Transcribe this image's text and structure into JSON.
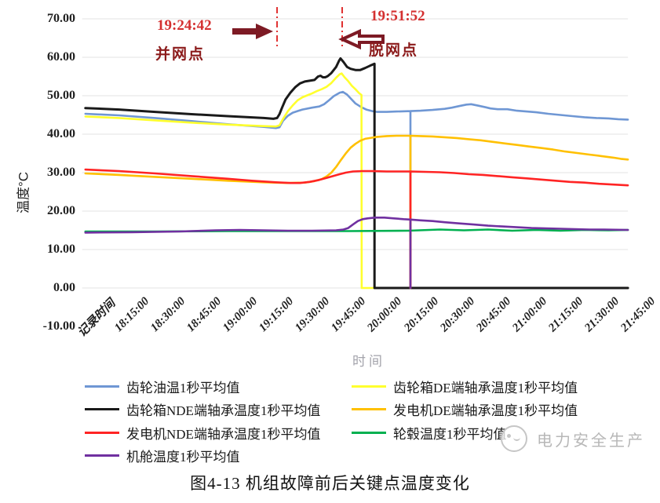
{
  "page": {
    "caption": "图4-13 机组故障前后关键点温度变化"
  },
  "watermark": {
    "text": "电力安全生产",
    "color": "#b7b7b7",
    "logo": "round-badge-icon"
  },
  "chart_data": {
    "type": "line",
    "title": "",
    "xlabel": "时间",
    "ylabel": "温度℃",
    "ylabel_display": "温度°C",
    "ylim": [
      -10,
      70
    ],
    "ytick_step": 10,
    "grid": "horizontal",
    "legend_position": "bottom",
    "ytick_labels": [
      "70.00",
      "60.00",
      "50.00",
      "40.00",
      "30.00",
      "20.00",
      "10.00",
      "0.00",
      "-10.00"
    ],
    "categories": [
      {
        "label": "记录时间",
        "t": 0
      },
      {
        "label": "18:15:00",
        "t": 15
      },
      {
        "label": "18:30:00",
        "t": 30
      },
      {
        "label": "18:45:00",
        "t": 45
      },
      {
        "label": "19:00:00",
        "t": 60
      },
      {
        "label": "19:15:00",
        "t": 75
      },
      {
        "label": "19:30:00",
        "t": 90
      },
      {
        "label": "19:45:00",
        "t": 105
      },
      {
        "label": "20:00:00",
        "t": 120
      },
      {
        "label": "20:15:00",
        "t": 135
      },
      {
        "label": "20:30:00",
        "t": 150
      },
      {
        "label": "20:45:00",
        "t": 165
      },
      {
        "label": "21:00:00",
        "t": 180
      },
      {
        "label": "21:15:00",
        "t": 195
      },
      {
        "label": "21:30:00",
        "t": 210
      },
      {
        "label": "21:45:00",
        "t": 225
      }
    ],
    "t_max": 226,
    "series": [
      {
        "name": "齿轮油温1秒平均值",
        "color": "#6f97d4",
        "width": 2.6,
        "points": [
          [
            1,
            45.3
          ],
          [
            15,
            44.9
          ],
          [
            30,
            44.2
          ],
          [
            45,
            43.4
          ],
          [
            60,
            42.6
          ],
          [
            75,
            41.9
          ],
          [
            80,
            41.6
          ],
          [
            81.5,
            41.8
          ],
          [
            83,
            43.5
          ],
          [
            85,
            44.8
          ],
          [
            87,
            45.6
          ],
          [
            91,
            46.4
          ],
          [
            95,
            46.9
          ],
          [
            98,
            47.2
          ],
          [
            100,
            47.8
          ],
          [
            102,
            48.8
          ],
          [
            104,
            49.9
          ],
          [
            106.5,
            50.8
          ],
          [
            107.8,
            51
          ],
          [
            109.5,
            50.3
          ],
          [
            111,
            49.3
          ],
          [
            113,
            48
          ],
          [
            115.5,
            47
          ],
          [
            117.5,
            46.4
          ],
          [
            120,
            46
          ],
          [
            122,
            45.8
          ],
          [
            126,
            45.8
          ],
          [
            130,
            45.9
          ],
          [
            135.8,
            46
          ],
          [
            135.8,
            0
          ],
          [
            135.8,
            46
          ],
          [
            140,
            46.1
          ],
          [
            145,
            46.3
          ],
          [
            150,
            46.6
          ],
          [
            153,
            46.9
          ],
          [
            156,
            47.3
          ],
          [
            159,
            47.7
          ],
          [
            161,
            47.8
          ],
          [
            164,
            47.4
          ],
          [
            167,
            47
          ],
          [
            169,
            46.7
          ],
          [
            172,
            46.5
          ],
          [
            176,
            46.5
          ],
          [
            180,
            46.1
          ],
          [
            184,
            45.9
          ],
          [
            188,
            45.7
          ],
          [
            193,
            45.3
          ],
          [
            198,
            45
          ],
          [
            203,
            44.7
          ],
          [
            208,
            44.4
          ],
          [
            213,
            44.2
          ],
          [
            218,
            44.1
          ],
          [
            222,
            43.9
          ],
          [
            226,
            43.8
          ]
        ]
      },
      {
        "name": "齿轮箱DE端轴承温度1秒平均值",
        "color": "#ffff2e",
        "width": 2.6,
        "points": [
          [
            1,
            44.6
          ],
          [
            15,
            44.2
          ],
          [
            30,
            43.6
          ],
          [
            45,
            43
          ],
          [
            60,
            42.5
          ],
          [
            75,
            42.1
          ],
          [
            80,
            42
          ],
          [
            81.5,
            42.3
          ],
          [
            83,
            44
          ],
          [
            85,
            46
          ],
          [
            87,
            47.5
          ],
          [
            89,
            48.8
          ],
          [
            91,
            49.6
          ],
          [
            93,
            50.1
          ],
          [
            95,
            50.6
          ],
          [
            97,
            51.2
          ],
          [
            99,
            51.7
          ],
          [
            101,
            52.3
          ],
          [
            103,
            53.3
          ],
          [
            105,
            54.7
          ],
          [
            106.5,
            55.6
          ],
          [
            107.3,
            55.8
          ],
          [
            108.5,
            54.8
          ],
          [
            110,
            53.8
          ],
          [
            111.5,
            52.6
          ],
          [
            113,
            51.7
          ],
          [
            114.5,
            50.7
          ],
          [
            115.5,
            50.2
          ],
          [
            115.6,
            0
          ],
          [
            226,
            0
          ]
        ]
      },
      {
        "name": "齿轮箱NDE端轴承温度1秒平均值",
        "color": "#1a1a1a",
        "width": 3,
        "points": [
          [
            1,
            46.8
          ],
          [
            15,
            46.4
          ],
          [
            30,
            45.8
          ],
          [
            45,
            45.2
          ],
          [
            60,
            44.7
          ],
          [
            75,
            44.2
          ],
          [
            79,
            44
          ],
          [
            80.5,
            44.2
          ],
          [
            81.5,
            45.2
          ],
          [
            82.5,
            46.8
          ],
          [
            84,
            49
          ],
          [
            86,
            50.8
          ],
          [
            88,
            52.2
          ],
          [
            90,
            53.2
          ],
          [
            92,
            53.7
          ],
          [
            94,
            53.9
          ],
          [
            96,
            54.1
          ],
          [
            97.5,
            55
          ],
          [
            98.5,
            55.2
          ],
          [
            99.5,
            54.8
          ],
          [
            100.5,
            54.8
          ],
          [
            101.5,
            55.1
          ],
          [
            103,
            55.9
          ],
          [
            105,
            57.5
          ],
          [
            106.3,
            59.2
          ],
          [
            106.8,
            59.7
          ],
          [
            108,
            58.8
          ],
          [
            109.5,
            57.5
          ],
          [
            111,
            57
          ],
          [
            113,
            56.7
          ],
          [
            115,
            56.7
          ],
          [
            117,
            57.2
          ],
          [
            119,
            57.8
          ],
          [
            120.5,
            58.2
          ],
          [
            120.9,
            58.3
          ],
          [
            120.9,
            0
          ],
          [
            226,
            0
          ]
        ]
      },
      {
        "name": "发电机DE端轴承温度1秒平均值",
        "color": "#ffc000",
        "width": 2.6,
        "points": [
          [
            1,
            29.8
          ],
          [
            15,
            29.4
          ],
          [
            30,
            28.9
          ],
          [
            45,
            28.4
          ],
          [
            60,
            27.9
          ],
          [
            75,
            27.5
          ],
          [
            85,
            27.3
          ],
          [
            92,
            27.4
          ],
          [
            96,
            27.8
          ],
          [
            99,
            28.3
          ],
          [
            101,
            29
          ],
          [
            103,
            30
          ],
          [
            105,
            31.5
          ],
          [
            107,
            33.3
          ],
          [
            109,
            35
          ],
          [
            111,
            36.5
          ],
          [
            113,
            37.5
          ],
          [
            115,
            38.3
          ],
          [
            117,
            38.8
          ],
          [
            119,
            39
          ],
          [
            122,
            39.3
          ],
          [
            126,
            39.5
          ],
          [
            130,
            39.6
          ],
          [
            135.8,
            39.6
          ],
          [
            135.8,
            0
          ],
          [
            135.8,
            39.6
          ],
          [
            140,
            39.5
          ],
          [
            145,
            39.4
          ],
          [
            150,
            39.2
          ],
          [
            155,
            39
          ],
          [
            160,
            38.7
          ],
          [
            165,
            38.4
          ],
          [
            170,
            38
          ],
          [
            175,
            37.6
          ],
          [
            180,
            37.2
          ],
          [
            185,
            36.8
          ],
          [
            190,
            36.4
          ],
          [
            195,
            36
          ],
          [
            200,
            35.5
          ],
          [
            205,
            35.1
          ],
          [
            210,
            34.7
          ],
          [
            215,
            34.3
          ],
          [
            220,
            33.9
          ],
          [
            223,
            33.6
          ],
          [
            226,
            33.4
          ]
        ]
      },
      {
        "name": "发电机NDE端轴承温度1秒平均值",
        "color": "#ff2424",
        "width": 2.6,
        "points": [
          [
            1,
            30.8
          ],
          [
            15,
            30.4
          ],
          [
            30,
            29.8
          ],
          [
            45,
            29.1
          ],
          [
            60,
            28.4
          ],
          [
            70,
            27.9
          ],
          [
            80,
            27.5
          ],
          [
            86,
            27.3
          ],
          [
            90,
            27.3
          ],
          [
            94,
            27.6
          ],
          [
            98,
            28.1
          ],
          [
            102,
            28.8
          ],
          [
            106,
            29.5
          ],
          [
            109,
            30
          ],
          [
            112,
            30.3
          ],
          [
            116,
            30.4
          ],
          [
            120,
            30.4
          ],
          [
            126,
            30.3
          ],
          [
            135.8,
            30.3
          ],
          [
            135.8,
            0
          ],
          [
            135.8,
            30.3
          ],
          [
            142,
            30.2
          ],
          [
            148,
            30.1
          ],
          [
            154,
            29.9
          ],
          [
            160,
            29.6
          ],
          [
            166,
            29.4
          ],
          [
            172,
            29.1
          ],
          [
            178,
            28.8
          ],
          [
            184,
            28.5
          ],
          [
            190,
            28.2
          ],
          [
            196,
            27.9
          ],
          [
            202,
            27.6
          ],
          [
            208,
            27.4
          ],
          [
            214,
            27.1
          ],
          [
            220,
            26.9
          ],
          [
            226,
            26.7
          ]
        ]
      },
      {
        "name": "轮毂温度1秒平均值",
        "color": "#00b050",
        "width": 2.6,
        "points": [
          [
            1,
            14.7
          ],
          [
            30,
            14.7
          ],
          [
            60,
            14.8
          ],
          [
            90,
            14.8
          ],
          [
            110,
            14.8
          ],
          [
            135,
            14.9
          ],
          [
            148,
            15.2
          ],
          [
            158,
            15
          ],
          [
            168,
            15.2
          ],
          [
            178,
            14.9
          ],
          [
            188,
            15.1
          ],
          [
            198,
            14.9
          ],
          [
            208,
            15.1
          ],
          [
            218,
            15
          ],
          [
            226,
            15.1
          ]
        ]
      },
      {
        "name": "机舱温度1秒平均值",
        "color": "#7030a0",
        "width": 2.6,
        "points": [
          [
            1,
            14.4
          ],
          [
            20,
            14.5
          ],
          [
            40,
            14.7
          ],
          [
            55,
            15
          ],
          [
            65,
            15.1
          ],
          [
            75,
            15
          ],
          [
            85,
            14.9
          ],
          [
            95,
            14.9
          ],
          [
            105,
            15
          ],
          [
            108,
            15.2
          ],
          [
            110,
            15.6
          ],
          [
            112,
            16.5
          ],
          [
            114,
            17.4
          ],
          [
            116,
            17.9
          ],
          [
            118,
            18.1
          ],
          [
            121,
            18.3
          ],
          [
            125,
            18.3
          ],
          [
            129,
            18.1
          ],
          [
            133,
            17.9
          ],
          [
            135.8,
            17.8
          ],
          [
            135.8,
            0
          ],
          [
            135.8,
            17.8
          ],
          [
            140,
            17.6
          ],
          [
            145,
            17.4
          ],
          [
            150,
            17.1
          ],
          [
            156,
            16.8
          ],
          [
            162,
            16.5
          ],
          [
            168,
            16.2
          ],
          [
            174,
            16
          ],
          [
            180,
            15.8
          ],
          [
            186,
            15.6
          ],
          [
            192,
            15.5
          ],
          [
            198,
            15.4
          ],
          [
            204,
            15.3
          ],
          [
            210,
            15.2
          ],
          [
            216,
            15.2
          ],
          [
            226,
            15.1
          ]
        ]
      }
    ],
    "annotations": [
      {
        "time": "19:24:42",
        "label": "并网点",
        "line_t": 80.5,
        "arrow": "right"
      },
      {
        "time": "19:51:52",
        "label": "脱网点",
        "line_t": 107.5,
        "arrow": "left"
      }
    ],
    "annotation_colors": {
      "time_text": "#d43030",
      "label_text": "#8b1a1a",
      "arrow": "#7d1a24",
      "line": "#e03030"
    }
  },
  "legend": {
    "columns": [
      [
        0,
        2,
        4,
        6
      ],
      [
        1,
        3,
        5
      ]
    ]
  }
}
